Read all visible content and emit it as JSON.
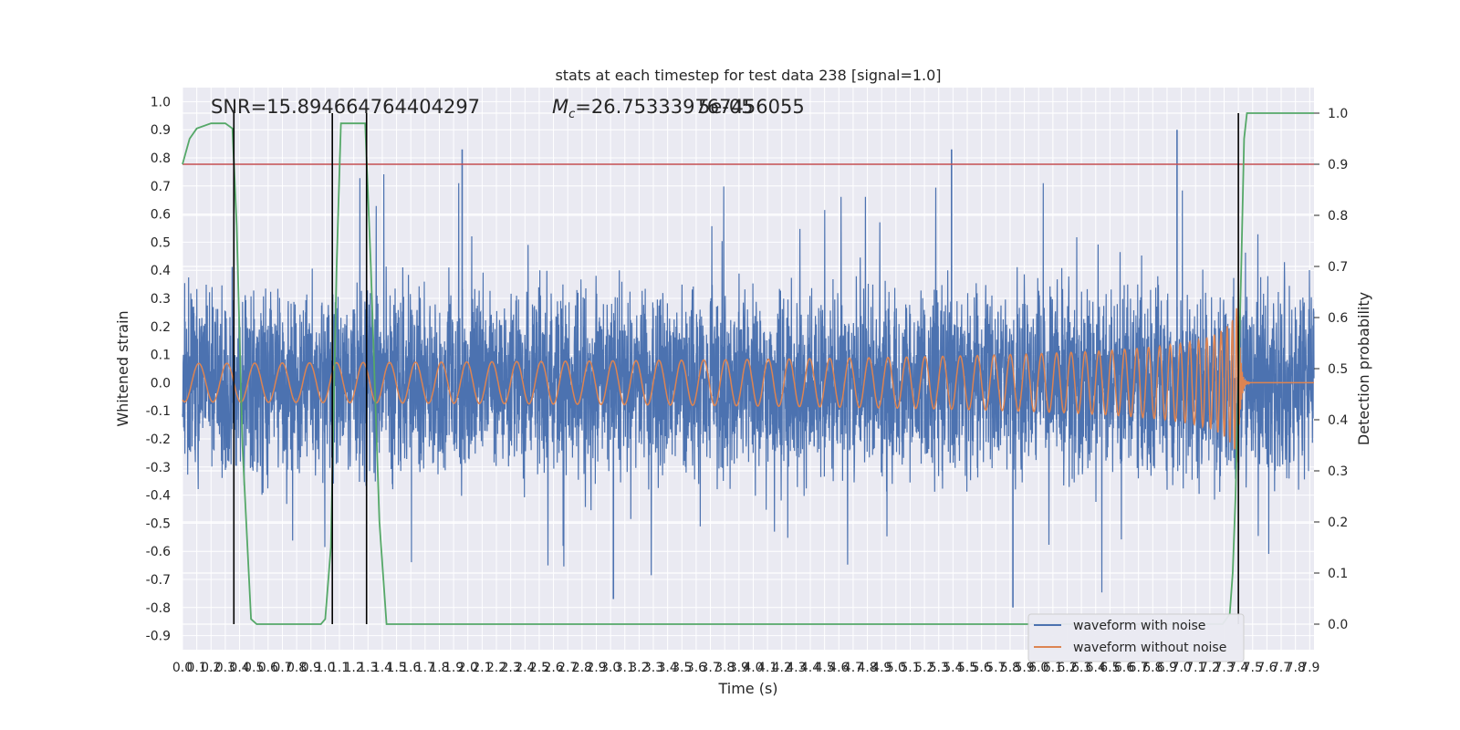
{
  "chart_data": {
    "type": "line",
    "title": "stats at each timestep for test data 238 [signal=1.0]",
    "xlabel": "Time (s)",
    "ylabel": "Whitened strain",
    "y2label": "Detection probability",
    "xlim": [
      0.0,
      7.93
    ],
    "ylim": [
      -0.95,
      1.05
    ],
    "y2lim": [
      -0.05,
      1.05
    ],
    "xticks": [
      0.0,
      0.1,
      0.2,
      0.3,
      0.4,
      0.5,
      0.6,
      0.7,
      0.8,
      0.9,
      1.0,
      1.1,
      1.2,
      1.3,
      1.4,
      1.5,
      1.6,
      1.7,
      1.8,
      1.9,
      2.0,
      2.1,
      2.2,
      2.3,
      2.4,
      2.5,
      2.6,
      2.7,
      2.8,
      2.9,
      3.0,
      3.1,
      3.2,
      3.3,
      3.4,
      3.5,
      3.6,
      3.7,
      3.8,
      3.9,
      4.0,
      4.1,
      4.2,
      4.3,
      4.4,
      4.5,
      4.6,
      4.7,
      4.8,
      4.9,
      5.0,
      5.1,
      5.2,
      5.3,
      5.4,
      5.5,
      5.6,
      5.7,
      5.8,
      5.9,
      6.0,
      6.1,
      6.2,
      6.3,
      6.4,
      6.5,
      6.6,
      6.7,
      6.8,
      6.9,
      7.0,
      7.1,
      7.2,
      7.3,
      7.4,
      7.5,
      7.6,
      7.7,
      7.8,
      7.9
    ],
    "yticks": [
      -0.9,
      -0.8,
      -0.7,
      -0.6,
      -0.5,
      -0.4,
      -0.3,
      -0.2,
      -0.1,
      0.0,
      0.1,
      0.2,
      0.3,
      0.4,
      0.5,
      0.6,
      0.7,
      0.8,
      0.9,
      1.0
    ],
    "y2ticks": [
      0.0,
      0.1,
      0.2,
      0.3,
      0.4,
      0.5,
      0.6,
      0.7,
      0.8,
      0.9,
      1.0
    ],
    "annotations": [
      "SNR=15.894664764404297",
      "$M_c$=26.753339767456055",
      "5e-05"
    ],
    "annotation_display": {
      "snr": "SNR=15.894664764404297",
      "mc_symbol": "M",
      "mc_sub": "c",
      "mc_value": "=26.753339767456055",
      "extra": "5e-05"
    },
    "threshold_line": {
      "axis": "y2",
      "value": 0.9,
      "color": "#c44e52"
    },
    "vertical_lines_x": [
      0.36,
      1.05,
      1.29,
      7.4
    ],
    "series": [
      {
        "name": "waveform with noise",
        "axis": "y",
        "color": "#4c72b0",
        "description_stats": {
          "abs_range": 0.4,
          "peak_values": [
            0.83,
            0.9,
            0.83,
            -0.8,
            -0.77
          ]
        }
      },
      {
        "name": "waveform without noise",
        "axis": "y",
        "color": "#dd8452",
        "chirp": {
          "merger_time": 7.4,
          "peak_amplitude": 0.3,
          "ringdown_end": 7.48
        }
      },
      {
        "name": "",
        "axis": "y2",
        "color": "#55a868",
        "x": [
          0.0,
          0.05,
          0.1,
          0.2,
          0.3,
          0.35,
          0.38,
          0.42,
          0.48,
          0.52,
          0.6,
          0.8,
          0.97,
          1.0,
          1.04,
          1.08,
          1.11,
          1.15,
          1.2,
          1.28,
          1.32,
          1.38,
          1.43,
          1.5,
          2.0,
          3.0,
          4.0,
          5.0,
          6.0,
          7.0,
          7.29,
          7.34,
          7.36,
          7.38,
          7.42,
          7.44,
          7.46,
          7.5,
          7.6,
          7.93
        ],
        "y": [
          0.9,
          0.95,
          0.97,
          0.98,
          0.98,
          0.97,
          0.78,
          0.35,
          0.01,
          0.0,
          0.0,
          0.0,
          0.0,
          0.01,
          0.15,
          0.7,
          0.98,
          0.98,
          0.98,
          0.98,
          0.7,
          0.2,
          0.0,
          0.0,
          0.0,
          0.0,
          0.0,
          0.0,
          0.0,
          0.0,
          0.0,
          0.02,
          0.1,
          0.25,
          0.7,
          0.95,
          1.0,
          1.0,
          1.0,
          1.0
        ]
      }
    ],
    "legend": {
      "placement": "lower-right",
      "entries": [
        "waveform with noise",
        "waveform without noise"
      ]
    },
    "grid": true
  }
}
